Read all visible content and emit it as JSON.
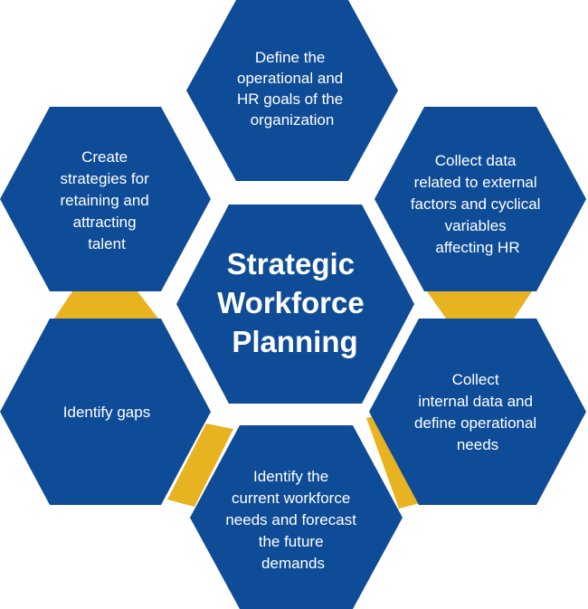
{
  "colors": {
    "hexagon": "#0f4c97",
    "connector": "#e8b321",
    "text": "#ffffff",
    "background": "#ffffff"
  },
  "center": {
    "lines": [
      "Strategic",
      "Workforce",
      "Planning"
    ]
  },
  "steps": [
    {
      "id": "top",
      "lines": [
        "Define the",
        "operational and",
        "HR goals of the",
        "organization"
      ]
    },
    {
      "id": "upper-right",
      "lines": [
        "Collect data",
        "related to external",
        "factors and cyclical",
        "variables",
        "affecting HR"
      ]
    },
    {
      "id": "lower-right",
      "lines": [
        "Collect",
        "internal data and",
        "define operational",
        "needs"
      ]
    },
    {
      "id": "bottom",
      "lines": [
        "Identify the",
        "current workforce",
        "needs and forecast",
        "the future",
        "demands"
      ]
    },
    {
      "id": "lower-left",
      "lines": [
        "Identify gaps"
      ]
    },
    {
      "id": "upper-left",
      "lines": [
        "Create",
        "strategies for",
        "retaining and",
        "attracting",
        "talent"
      ]
    }
  ]
}
